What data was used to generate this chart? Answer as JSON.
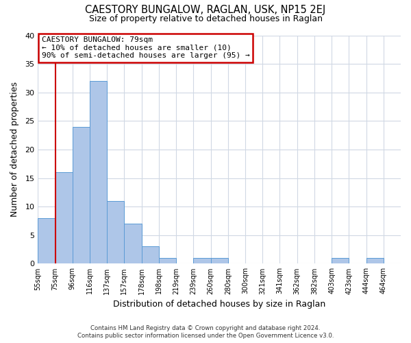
{
  "title": "CAESTORY BUNGALOW, RAGLAN, USK, NP15 2EJ",
  "subtitle": "Size of property relative to detached houses in Raglan",
  "xlabel": "Distribution of detached houses by size in Raglan",
  "ylabel": "Number of detached properties",
  "bin_labels": [
    "55sqm",
    "75sqm",
    "96sqm",
    "116sqm",
    "137sqm",
    "157sqm",
    "178sqm",
    "198sqm",
    "219sqm",
    "239sqm",
    "260sqm",
    "280sqm",
    "300sqm",
    "321sqm",
    "341sqm",
    "362sqm",
    "382sqm",
    "403sqm",
    "423sqm",
    "444sqm",
    "464sqm"
  ],
  "bar_heights": [
    8,
    16,
    24,
    32,
    11,
    7,
    3,
    1,
    0,
    1,
    1,
    0,
    0,
    0,
    0,
    0,
    0,
    1,
    0,
    1,
    0
  ],
  "bar_color": "#aec6e8",
  "bar_edge_color": "#5b9bd5",
  "ylim": [
    0,
    40
  ],
  "yticks": [
    0,
    5,
    10,
    15,
    20,
    25,
    30,
    35,
    40
  ],
  "property_line_x": 1,
  "property_line_color": "#cc0000",
  "annotation_title": "CAESTORY BUNGALOW: 79sqm",
  "annotation_line1": "← 10% of detached houses are smaller (10)",
  "annotation_line2": "90% of semi-detached houses are larger (95) →",
  "annotation_box_color": "#cc0000",
  "footer_line1": "Contains HM Land Registry data © Crown copyright and database right 2024.",
  "footer_line2": "Contains public sector information licensed under the Open Government Licence v3.0.",
  "bg_color": "#ffffff",
  "grid_color": "#d0d8e4"
}
